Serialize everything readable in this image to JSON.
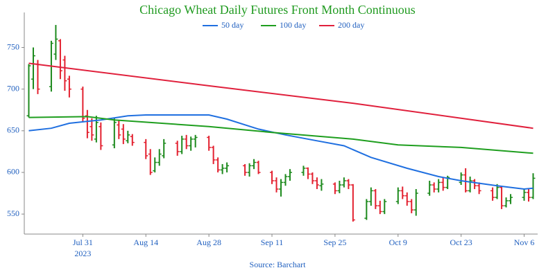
{
  "chart_data": {
    "type": "ohlc",
    "title": "Chicago Wheat Daily Futures Front Month Continuous",
    "source": "Source: Barchart",
    "title_color": "#1f9a1f",
    "label_color": "#1f5fbf",
    "up_color": "#1d8a1d",
    "down_color": "#e3202f",
    "x": [
      "2023-07-19",
      "2023-07-20",
      "2023-07-21",
      "2023-07-24",
      "2023-07-25",
      "2023-07-26",
      "2023-07-27",
      "2023-07-28",
      "2023-07-31",
      "2023-08-01",
      "2023-08-02",
      "2023-08-03",
      "2023-08-04",
      "2023-08-07",
      "2023-08-08",
      "2023-08-09",
      "2023-08-10",
      "2023-08-11",
      "2023-08-14",
      "2023-08-15",
      "2023-08-16",
      "2023-08-17",
      "2023-08-18",
      "2023-08-21",
      "2023-08-22",
      "2023-08-23",
      "2023-08-24",
      "2023-08-25",
      "2023-08-28",
      "2023-08-29",
      "2023-08-30",
      "2023-08-31",
      "2023-09-01",
      "2023-09-05",
      "2023-09-06",
      "2023-09-07",
      "2023-09-08",
      "2023-09-11",
      "2023-09-12",
      "2023-09-13",
      "2023-09-14",
      "2023-09-15",
      "2023-09-18",
      "2023-09-19",
      "2023-09-20",
      "2023-09-21",
      "2023-09-22",
      "2023-09-25",
      "2023-09-26",
      "2023-09-27",
      "2023-09-28",
      "2023-09-29",
      "2023-10-02",
      "2023-10-03",
      "2023-10-04",
      "2023-10-05",
      "2023-10-06",
      "2023-10-09",
      "2023-10-10",
      "2023-10-11",
      "2023-10-12",
      "2023-10-13",
      "2023-10-16",
      "2023-10-17",
      "2023-10-18",
      "2023-10-19",
      "2023-10-20",
      "2023-10-23",
      "2023-10-24",
      "2023-10-25",
      "2023-10-26",
      "2023-10-27",
      "2023-10-30",
      "2023-10-31",
      "2023-11-01",
      "2023-11-02",
      "2023-11-03",
      "2023-11-06",
      "2023-11-07",
      "2023-11-08"
    ],
    "open": [
      668,
      712,
      730,
      703,
      742,
      758,
      735,
      712,
      700,
      668,
      655,
      640,
      655,
      633,
      657,
      652,
      638,
      643,
      636,
      622,
      602,
      612,
      620,
      635,
      625,
      640,
      632,
      640,
      642,
      630,
      615,
      603,
      605,
      608,
      600,
      608,
      612,
      600,
      590,
      580,
      588,
      595,
      600,
      605,
      598,
      590,
      584,
      586,
      578,
      585,
      590,
      585,
      545,
      565,
      578,
      560,
      553,
      565,
      578,
      572,
      565,
      555,
      575,
      585,
      580,
      588,
      582,
      588,
      597,
      578,
      590,
      584,
      578,
      570,
      582,
      560,
      566,
      570,
      576,
      570
    ],
    "high": [
      730,
      750,
      735,
      758,
      777,
      760,
      740,
      716,
      703,
      675,
      665,
      668,
      660,
      666,
      662,
      658,
      650,
      646,
      640,
      628,
      618,
      628,
      640,
      638,
      644,
      645,
      643,
      645,
      644,
      632,
      618,
      610,
      612,
      610,
      611,
      616,
      614,
      602,
      594,
      592,
      598,
      604,
      608,
      606,
      600,
      594,
      592,
      588,
      590,
      594,
      592,
      586,
      568,
      582,
      580,
      566,
      568,
      582,
      583,
      576,
      568,
      580,
      590,
      588,
      592,
      594,
      596,
      600,
      605,
      595,
      592,
      588,
      582,
      586,
      584,
      570,
      574,
      580,
      580,
      599
    ],
    "low": [
      666,
      700,
      694,
      697,
      735,
      712,
      698,
      690,
      660,
      641,
      638,
      636,
      627,
      629,
      640,
      634,
      635,
      632,
      616,
      597,
      600,
      608,
      617,
      620,
      622,
      628,
      626,
      630,
      626,
      610,
      600,
      598,
      600,
      596,
      595,
      604,
      598,
      586,
      576,
      571,
      584,
      590,
      596,
      592,
      586,
      580,
      578,
      574,
      575,
      582,
      580,
      541,
      543,
      560,
      556,
      550,
      550,
      562,
      568,
      560,
      551,
      548,
      572,
      576,
      576,
      578,
      580,
      585,
      576,
      576,
      580,
      574,
      566,
      568,
      556,
      558,
      562,
      566,
      565,
      568
    ],
    "close": [
      728,
      740,
      700,
      755,
      760,
      722,
      710,
      700,
      665,
      648,
      645,
      660,
      632,
      660,
      645,
      640,
      645,
      636,
      620,
      600,
      612,
      622,
      635,
      625,
      640,
      632,
      640,
      642,
      630,
      615,
      603,
      605,
      608,
      600,
      608,
      612,
      600,
      590,
      580,
      588,
      595,
      600,
      605,
      598,
      590,
      585,
      586,
      578,
      585,
      590,
      585,
      543,
      565,
      578,
      560,
      553,
      565,
      578,
      572,
      565,
      555,
      575,
      585,
      580,
      588,
      582,
      594,
      597,
      578,
      590,
      584,
      578,
      570,
      582,
      560,
      566,
      570,
      576,
      570,
      593
    ],
    "series": [
      {
        "name": "50 day",
        "color": "#1f6fe0",
        "x": [
          "2023-07-19",
          "2023-07-24",
          "2023-07-28",
          "2023-08-04",
          "2023-08-10",
          "2023-08-14",
          "2023-08-28",
          "2023-09-01",
          "2023-09-08",
          "2023-09-14",
          "2023-09-21",
          "2023-09-27",
          "2023-10-03",
          "2023-10-11",
          "2023-10-18",
          "2023-10-23",
          "2023-10-31",
          "2023-11-06",
          "2023-11-08"
        ],
        "values": [
          650,
          653,
          659,
          663,
          668,
          669,
          669,
          664,
          652,
          645,
          638,
          632,
          618,
          605,
          595,
          590,
          584,
          580,
          581
        ]
      },
      {
        "name": "100 day",
        "color": "#1e9e1e",
        "x": [
          "2023-07-19",
          "2023-08-01",
          "2023-08-07",
          "2023-08-28",
          "2023-09-11",
          "2023-09-29",
          "2023-10-09",
          "2023-10-23",
          "2023-11-08"
        ],
        "values": [
          666,
          667,
          663,
          655,
          648,
          640,
          633,
          630,
          623
        ]
      },
      {
        "name": "200 day",
        "color": "#e0203c",
        "x": [
          "2023-07-19",
          "2023-08-28",
          "2023-09-29",
          "2023-11-08"
        ],
        "values": [
          731,
          704,
          683,
          653
        ]
      }
    ],
    "xlim": [
      "2023-07-18",
      "2023-11-09"
    ],
    "xticks": [
      {
        "value": "2023-07-31",
        "label": "Jul 31"
      },
      {
        "value": "2023-08-14",
        "label": "Aug 14"
      },
      {
        "value": "2023-08-28",
        "label": "Aug 28"
      },
      {
        "value": "2023-09-11",
        "label": "Sep 11"
      },
      {
        "value": "2023-09-25",
        "label": "Sep 25"
      },
      {
        "value": "2023-10-09",
        "label": "Oct 9"
      },
      {
        "value": "2023-10-23",
        "label": "Oct 23"
      },
      {
        "value": "2023-11-06",
        "label": "Nov 6"
      }
    ],
    "xtick_year": "2023",
    "ylim": [
      526,
      792
    ],
    "yticks": [
      550,
      600,
      650,
      700,
      750
    ]
  }
}
